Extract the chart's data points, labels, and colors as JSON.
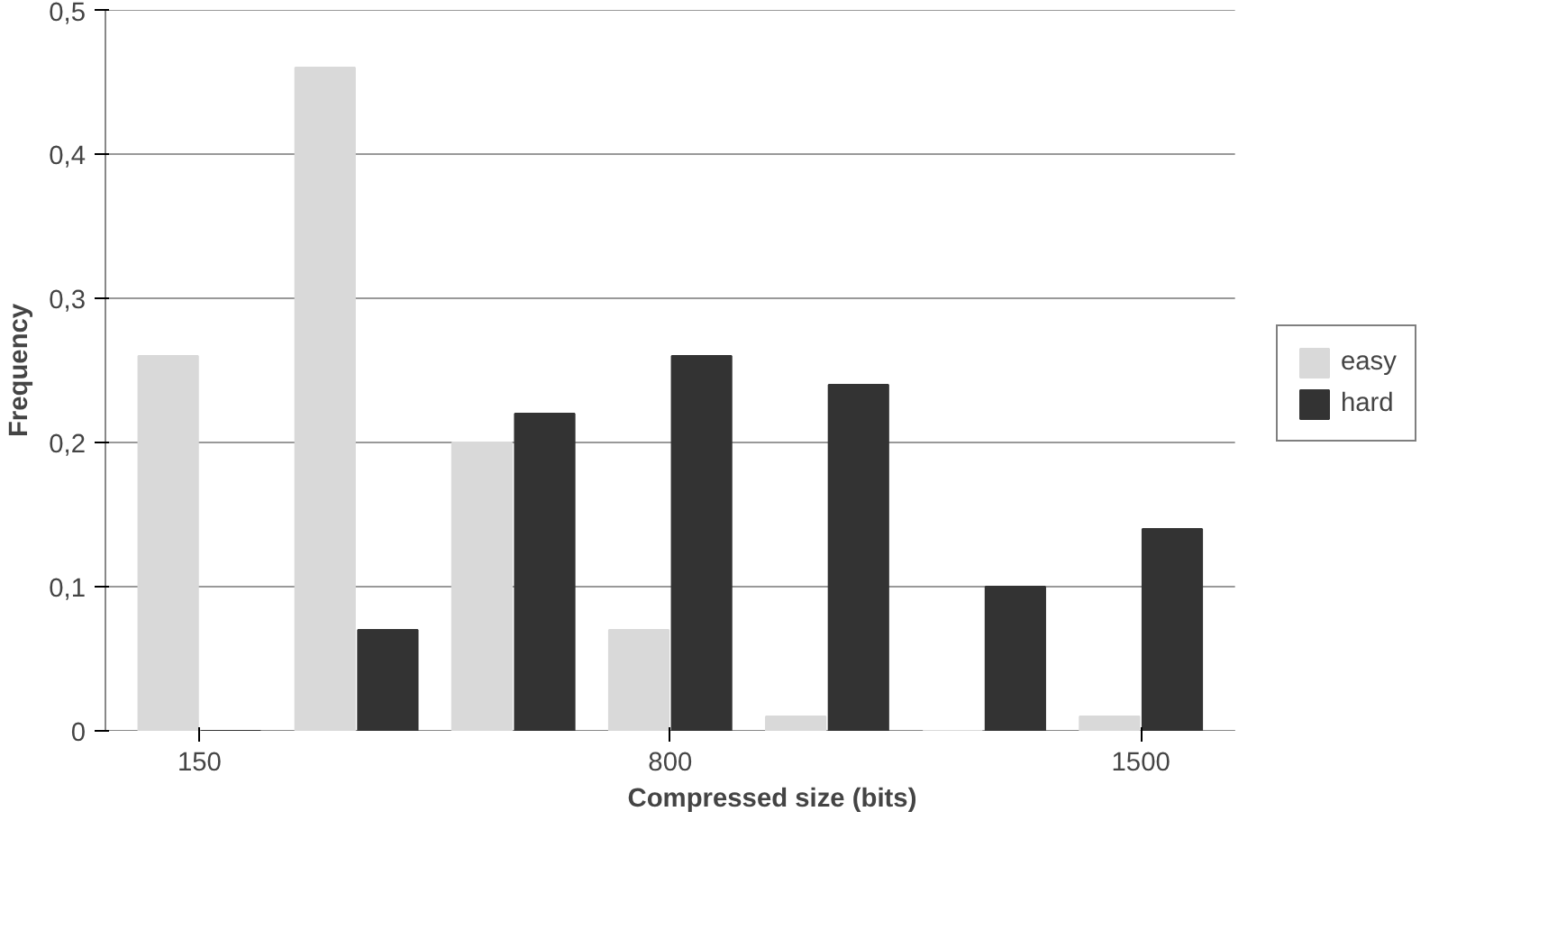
{
  "chart_data": {
    "type": "bar",
    "xlabel": "Compressed size (bits)",
    "ylabel": "Frequency",
    "categories": [
      "150",
      null,
      null,
      "800",
      null,
      null,
      "1500"
    ],
    "series": [
      {
        "name": "easy",
        "color": "#d9d9d9",
        "values": [
          0.26,
          0.46,
          0.2,
          0.07,
          0.01,
          0.0,
          0.01
        ]
      },
      {
        "name": "hard",
        "color": "#333333",
        "values": [
          0.0,
          0.07,
          0.22,
          0.26,
          0.24,
          0.1,
          0.14
        ]
      }
    ],
    "ylim": [
      0,
      0.5
    ],
    "yticks": [
      0,
      {
        "value": 0.1,
        "label": "0,1"
      },
      {
        "value": 0.2,
        "label": "0,2"
      },
      {
        "value": 0.3,
        "label": "0,3"
      },
      {
        "value": 0.4,
        "label": "0,4"
      },
      {
        "value": 0.5,
        "label": "0,5"
      }
    ],
    "grid": "y",
    "legend": "right"
  }
}
